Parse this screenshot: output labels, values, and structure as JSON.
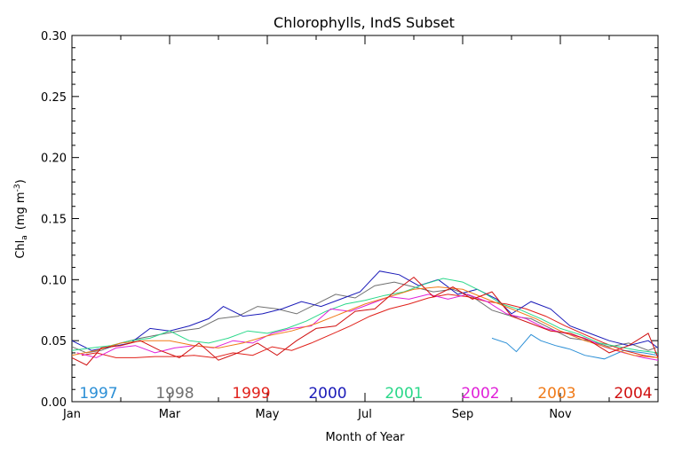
{
  "chart_data": {
    "type": "line",
    "title": "Chlorophylls, IndS Subset",
    "xlabel": "Month of Year",
    "ylabel_main": "Chl",
    "ylabel_sub": "a",
    "ylabel_units_pre": "(mg m",
    "ylabel_units_sup": "-3",
    "ylabel_units_post": ")",
    "xlim": [
      0,
      12
    ],
    "ylim": [
      0,
      0.3
    ],
    "x_ticks": [
      {
        "value": 0,
        "label": "Jan"
      },
      {
        "value": 2,
        "label": "Mar"
      },
      {
        "value": 4,
        "label": "May"
      },
      {
        "value": 6,
        "label": "Jul"
      },
      {
        "value": 8,
        "label": "Sep"
      },
      {
        "value": 10,
        "label": "Nov"
      }
    ],
    "x_minor_ticks": [
      1,
      3,
      5,
      7,
      9,
      11
    ],
    "y_ticks": [
      {
        "value": 0.0,
        "label": "0.00"
      },
      {
        "value": 0.05,
        "label": "0.05"
      },
      {
        "value": 0.1,
        "label": "0.10"
      },
      {
        "value": 0.15,
        "label": "0.15"
      },
      {
        "value": 0.2,
        "label": "0.20"
      },
      {
        "value": 0.25,
        "label": "0.25"
      },
      {
        "value": 0.3,
        "label": "0.30"
      }
    ],
    "grid": false,
    "legend_position": "bottom inside plot, year labels colored",
    "series": [
      {
        "name": "1997",
        "color": "#2b8fd6",
        "x": [
          8.6,
          8.9,
          9.1,
          9.4,
          9.6,
          9.9,
          10.2,
          10.5,
          10.9,
          11.3,
          11.7,
          12.0
        ],
        "y": [
          0.052,
          0.048,
          0.041,
          0.055,
          0.05,
          0.046,
          0.043,
          0.038,
          0.035,
          0.042,
          0.04,
          0.038
        ]
      },
      {
        "name": "1998",
        "color": "#707070",
        "x": [
          0,
          0.3,
          0.6,
          1.0,
          1.4,
          1.8,
          2.2,
          2.6,
          3.0,
          3.4,
          3.8,
          4.2,
          4.6,
          5.0,
          5.4,
          5.8,
          6.2,
          6.6,
          7.0,
          7.4,
          7.8,
          8.2,
          8.6,
          9.0,
          9.4,
          9.8,
          10.2,
          10.6,
          11.0,
          11.4,
          11.8,
          12.0
        ],
        "y": [
          0.045,
          0.04,
          0.042,
          0.048,
          0.052,
          0.055,
          0.058,
          0.06,
          0.068,
          0.07,
          0.078,
          0.076,
          0.072,
          0.08,
          0.088,
          0.085,
          0.095,
          0.098,
          0.094,
          0.09,
          0.092,
          0.086,
          0.075,
          0.07,
          0.068,
          0.06,
          0.052,
          0.05,
          0.045,
          0.048,
          0.042,
          0.045
        ]
      },
      {
        "name": "1999",
        "color": "#e0201a",
        "x": [
          0.2,
          0.5,
          0.9,
          1.3,
          1.7,
          2.1,
          2.5,
          2.9,
          3.3,
          3.7,
          4.1,
          4.5,
          4.9,
          5.3,
          5.7,
          6.1,
          6.5,
          6.9,
          7.3,
          7.7,
          8.1,
          8.5,
          8.9,
          9.3,
          9.7,
          10.1,
          10.5,
          10.9,
          11.3,
          11.7,
          12.0
        ],
        "y": [
          0.038,
          0.04,
          0.036,
          0.036,
          0.037,
          0.037,
          0.038,
          0.036,
          0.04,
          0.038,
          0.045,
          0.042,
          0.048,
          0.055,
          0.062,
          0.07,
          0.076,
          0.08,
          0.085,
          0.088,
          0.086,
          0.082,
          0.08,
          0.076,
          0.07,
          0.062,
          0.055,
          0.048,
          0.042,
          0.038,
          0.036
        ]
      },
      {
        "name": "2000",
        "color": "#1a1ab8",
        "x": [
          0,
          0.4,
          0.8,
          1.2,
          1.6,
          2.0,
          2.4,
          2.8,
          3.1,
          3.5,
          3.9,
          4.3,
          4.7,
          5.1,
          5.5,
          5.9,
          6.3,
          6.7,
          7.1,
          7.5,
          7.9,
          8.3,
          8.7,
          9.0,
          9.4,
          9.8,
          10.2,
          10.6,
          11.0,
          11.4,
          11.8,
          12.0
        ],
        "y": [
          0.05,
          0.042,
          0.045,
          0.048,
          0.06,
          0.058,
          0.062,
          0.068,
          0.078,
          0.07,
          0.072,
          0.076,
          0.082,
          0.078,
          0.084,
          0.09,
          0.107,
          0.104,
          0.095,
          0.1,
          0.088,
          0.092,
          0.084,
          0.072,
          0.082,
          0.076,
          0.062,
          0.056,
          0.05,
          0.046,
          0.05,
          0.044
        ]
      },
      {
        "name": "2001",
        "color": "#2ad88a",
        "x": [
          0,
          0.4,
          0.8,
          1.2,
          1.6,
          2.0,
          2.4,
          2.8,
          3.2,
          3.6,
          4.0,
          4.4,
          4.8,
          5.2,
          5.6,
          6.0,
          6.4,
          6.8,
          7.2,
          7.6,
          8.0,
          8.4,
          8.8,
          9.2,
          9.6,
          10.0,
          10.4,
          10.8,
          11.2,
          11.6,
          12.0
        ],
        "y": [
          0.042,
          0.044,
          0.046,
          0.05,
          0.052,
          0.058,
          0.05,
          0.048,
          0.052,
          0.058,
          0.056,
          0.06,
          0.066,
          0.074,
          0.08,
          0.083,
          0.087,
          0.09,
          0.096,
          0.101,
          0.098,
          0.09,
          0.08,
          0.075,
          0.068,
          0.06,
          0.055,
          0.048,
          0.045,
          0.042,
          0.04
        ]
      },
      {
        "name": "2002",
        "color": "#e020d8",
        "x": [
          0.1,
          0.5,
          0.9,
          1.3,
          1.7,
          2.1,
          2.5,
          2.9,
          3.3,
          3.7,
          4.1,
          4.5,
          4.9,
          5.3,
          5.7,
          6.1,
          6.5,
          6.9,
          7.3,
          7.7,
          8.1,
          8.5,
          8.9,
          9.3,
          9.7,
          10.1,
          10.5,
          10.9,
          11.3,
          11.7,
          12.0
        ],
        "y": [
          0.04,
          0.036,
          0.044,
          0.046,
          0.04,
          0.044,
          0.046,
          0.044,
          0.05,
          0.048,
          0.056,
          0.06,
          0.062,
          0.076,
          0.074,
          0.08,
          0.086,
          0.084,
          0.088,
          0.084,
          0.088,
          0.082,
          0.072,
          0.068,
          0.06,
          0.056,
          0.052,
          0.045,
          0.04,
          0.036,
          0.034
        ]
      },
      {
        "name": "2003",
        "color": "#f07a18",
        "x": [
          0,
          0.5,
          1.0,
          1.5,
          2.0,
          2.5,
          3.0,
          3.5,
          4.0,
          4.5,
          5.0,
          5.5,
          6.0,
          6.5,
          7.0,
          7.5,
          8.0,
          8.5,
          9.0,
          9.5,
          10.0,
          10.5,
          11.0,
          11.5,
          12.0
        ],
        "y": [
          0.038,
          0.042,
          0.048,
          0.05,
          0.05,
          0.046,
          0.044,
          0.048,
          0.054,
          0.058,
          0.064,
          0.072,
          0.08,
          0.086,
          0.092,
          0.094,
          0.092,
          0.084,
          0.076,
          0.068,
          0.058,
          0.05,
          0.044,
          0.038,
          0.036
        ]
      },
      {
        "name": "2004",
        "color": "#d01010",
        "x": [
          0,
          0.3,
          0.6,
          1.0,
          1.4,
          1.8,
          2.2,
          2.6,
          3.0,
          3.4,
          3.8,
          4.2,
          4.6,
          5.0,
          5.4,
          5.8,
          6.2,
          6.6,
          7.0,
          7.4,
          7.8,
          8.2,
          8.6,
          9.0,
          9.4,
          9.8,
          10.2,
          10.6,
          11.0,
          11.4,
          11.8,
          12.0
        ],
        "y": [
          0.036,
          0.03,
          0.044,
          0.046,
          0.05,
          0.042,
          0.036,
          0.048,
          0.034,
          0.04,
          0.048,
          0.038,
          0.05,
          0.06,
          0.062,
          0.074,
          0.076,
          0.09,
          0.102,
          0.086,
          0.094,
          0.084,
          0.09,
          0.07,
          0.064,
          0.058,
          0.056,
          0.05,
          0.04,
          0.046,
          0.056,
          0.036
        ]
      }
    ]
  }
}
